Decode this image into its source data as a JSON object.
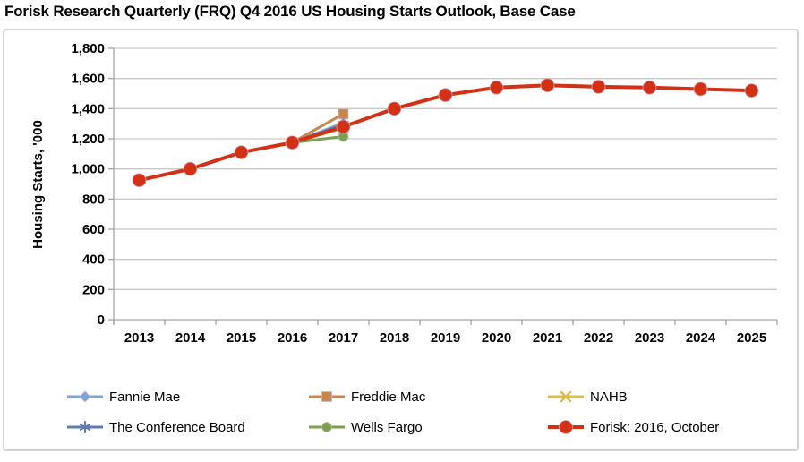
{
  "chart_data": {
    "type": "line",
    "title": "Forisk Research Quarterly (FRQ) Q4 2016 US Housing Starts Outlook, Base Case",
    "xlabel": "",
    "ylabel": "Housing Starts, '000",
    "x_categories": [
      2013,
      2014,
      2015,
      2016,
      2017,
      2018,
      2019,
      2020,
      2021,
      2022,
      2023,
      2024,
      2025
    ],
    "ylim": [
      0,
      1800
    ],
    "ytick_step": 200,
    "grid": true,
    "legend_position": "bottom",
    "series": [
      {
        "name": "Fannie Mae",
        "marker": "diamond",
        "color": "#7EA3D6",
        "x": [
          2016,
          2017
        ],
        "values": [
          1175,
          1305
        ]
      },
      {
        "name": "Freddie Mac",
        "marker": "square",
        "color": "#C9854C",
        "x": [
          2016,
          2017
        ],
        "values": [
          1175,
          1365
        ]
      },
      {
        "name": "NAHB",
        "marker": "x",
        "color": "#D9BC4B",
        "x": [
          2016,
          2017
        ],
        "values": [
          1175,
          1270
        ]
      },
      {
        "name": "The Conference Board",
        "marker": "asterisk",
        "color": "#5E7CB2",
        "x": [
          2016,
          2017
        ],
        "values": [
          1175,
          1295
        ]
      },
      {
        "name": "Wells Fargo",
        "marker": "circle",
        "color": "#7CA14E",
        "x": [
          2016,
          2017
        ],
        "values": [
          1175,
          1215
        ]
      },
      {
        "name": "Forisk: 2016, October",
        "marker": "circle-large",
        "color": "#D33115",
        "x": [
          2013,
          2014,
          2015,
          2016,
          2017,
          2018,
          2019,
          2020,
          2021,
          2022,
          2023,
          2024,
          2025
        ],
        "values": [
          925,
          1000,
          1110,
          1175,
          1280,
          1400,
          1490,
          1540,
          1555,
          1545,
          1540,
          1530,
          1520
        ]
      }
    ]
  },
  "style_colors": {
    "gridline": "#C9C9C9",
    "axis_line": "#A6A6A6",
    "frame_border": "#D5D5D5",
    "marker_halo": "#C8BAD8",
    "text": "#000000"
  }
}
